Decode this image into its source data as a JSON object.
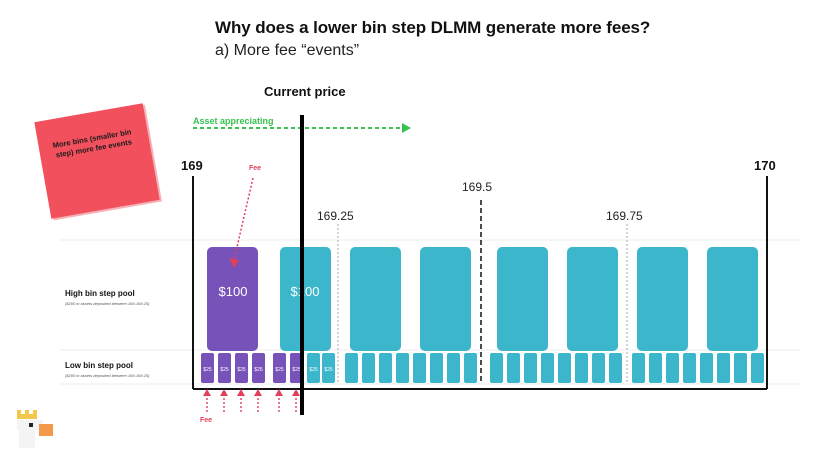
{
  "heading": {
    "title": "Why does a lower bin step DLMM generate more fees?",
    "subtitle": "a) More fee “events”"
  },
  "current_price_label": "Current price",
  "asset_label": "Asset appreciating",
  "price_labels": {
    "left": "169",
    "right": "170",
    "mid": "169.5",
    "q1": "169.25",
    "q3": "169.75"
  },
  "sticky_note": "More bins (smaller bin step) more fee events",
  "high_pool": {
    "title": "High bin step pool",
    "subtitle": "($200 in assets deposited between 169-169.25)",
    "bin_value": "$100"
  },
  "low_pool": {
    "title": "Low bin step pool",
    "subtitle": "($200 in assets deposited between 169-169.25)",
    "bin_value": "$25"
  },
  "fee_label_top": "Fee",
  "fee_label_bottom": "Fee",
  "colors": {
    "purple": "#7752b9",
    "teal": "#3bb6cb",
    "fee": "#e0405a",
    "asset": "#39c24f",
    "sticky": "#f2505d"
  }
}
